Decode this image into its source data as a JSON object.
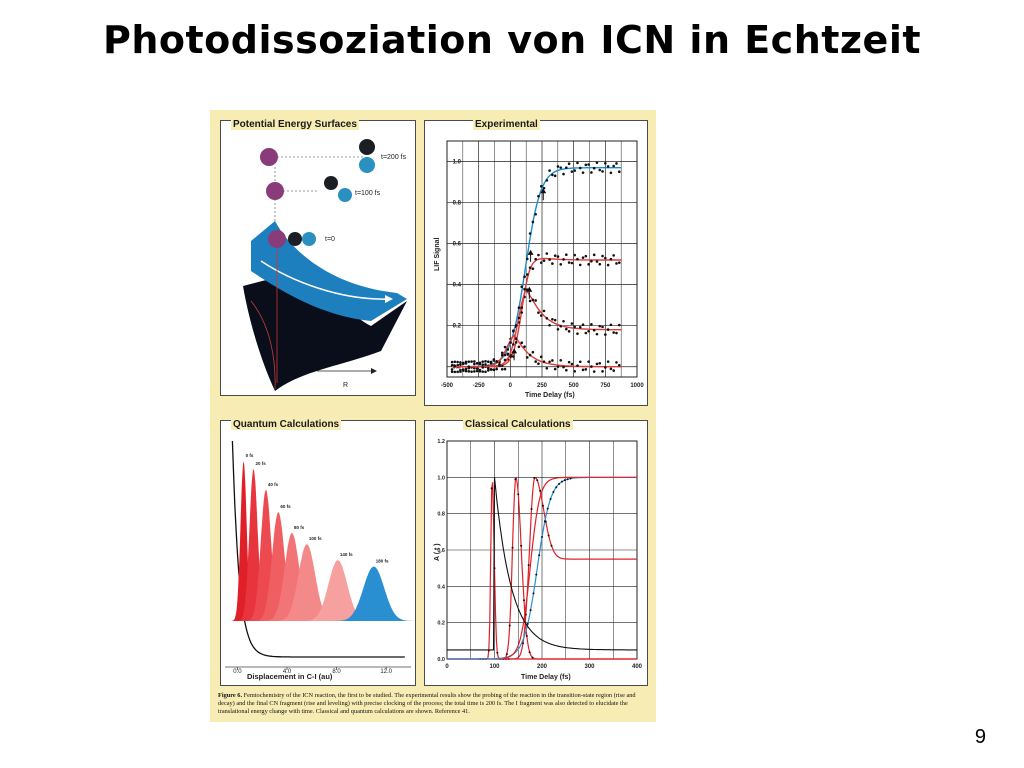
{
  "slide": {
    "title": "Photodissoziation von ICN in Echtzeit",
    "page_number": "9"
  },
  "panels": {
    "pes": {
      "title": "Potential Energy Surfaces",
      "labels": [
        "t=200 fs",
        "t=100 fs",
        "t=0",
        "R"
      ]
    },
    "experimental": {
      "title": "Experimental",
      "ylabel": "LIF Signal",
      "xlabel": "Time Delay (fs)"
    },
    "quantum": {
      "title": "Quantum Calculations",
      "xlabel": "Displacement in C-I (au)"
    },
    "classical": {
      "title": "Classical Calculations",
      "ylabel": "A ( t )",
      "xlabel": "Time Delay (fs)"
    }
  },
  "caption": {
    "label": "Figure 6.",
    "text": "Femtochemistry of the ICN reaction, the first to be studied. The experimental results show the probing of the reaction in the transition-state region (rise and decay) and the final CN fragment (rise and leveling) with precise clocking of the process; the total time is 200 fs. The I fragment was also detected to elucidate the translational energy change with time. Classical and quantum calculations are shown. Reference 41."
  },
  "chart_data": [
    {
      "type": "scatter",
      "title": "Experimental",
      "xlabel": "Time Delay (fs)",
      "ylabel": "LIF Signal",
      "xlim": [
        -500,
        1000
      ],
      "ylim": [
        -0.05,
        1.1
      ],
      "x_ticks": [
        "-500",
        "-250",
        "0",
        "250",
        "500",
        "750",
        "1000"
      ],
      "y_ticks": [
        "0.0",
        "0.2",
        "0.4",
        "0.6",
        "0.8",
        "1.0"
      ],
      "fit_colors": [
        "#1a8fd0",
        "#e23b3b"
      ],
      "series": [
        {
          "fit": "rise",
          "plateau": 0.97,
          "t0": 120,
          "width": 60
        },
        {
          "fit": "transient",
          "peak": 0.55,
          "t_peak": 150,
          "baseline": 0.52
        },
        {
          "fit": "transient",
          "peak": 0.44,
          "t_peak": 120,
          "baseline": 0.18
        },
        {
          "fit": "transient",
          "peak": 0.18,
          "t_peak": 30,
          "baseline": 0.0
        }
      ]
    },
    {
      "type": "area",
      "title": "Quantum Calculations",
      "xlabel": "Displacement in C-I (au)",
      "xlim": [
        -1,
        14
      ],
      "x_ticks": [
        "0.0",
        "4.0",
        "8.0",
        "12.0"
      ],
      "colors": [
        "#e02028",
        "#e8343c",
        "#ec4a50",
        "#ef5f62",
        "#f27476",
        "#f4898a",
        "#f6a0a0",
        "#2a8fd0"
      ],
      "series": [
        {
          "name": "0 fs",
          "center": 0.5,
          "height": 1.0
        },
        {
          "name": "20 fs",
          "center": 1.3,
          "height": 0.95
        },
        {
          "name": "40 fs",
          "center": 2.3,
          "height": 0.82
        },
        {
          "name": "60 fs",
          "center": 3.3,
          "height": 0.68
        },
        {
          "name": "80 fs",
          "center": 4.4,
          "height": 0.55
        },
        {
          "name": "100 fs",
          "center": 5.6,
          "height": 0.48
        },
        {
          "name": "140 fs",
          "center": 8.1,
          "height": 0.38
        },
        {
          "name": "180 fs",
          "center": 11.0,
          "height": 0.34
        }
      ]
    },
    {
      "type": "line",
      "title": "Classical Calculations",
      "xlabel": "Time Delay (fs)",
      "ylabel": "A ( t )",
      "xlim": [
        0,
        400
      ],
      "ylim": [
        0,
        1.2
      ],
      "x_ticks": [
        "0",
        "100",
        "200",
        "300",
        "400"
      ],
      "y_ticks": [
        "0.0",
        "0.2",
        "0.4",
        "0.6",
        "0.8",
        "1.0",
        "1.2"
      ],
      "colors": [
        "#e02028",
        "#2a8fd0"
      ],
      "series": [
        {
          "kind": "transient",
          "t_peak": 95,
          "peak": 1.0
        },
        {
          "kind": "transient",
          "t_peak": 145,
          "peak": 1.0
        },
        {
          "kind": "transient",
          "t_peak": 185,
          "peak": 1.0,
          "baseline": 0.55
        },
        {
          "kind": "rise",
          "t0": 190,
          "plateau": 1.0
        }
      ]
    }
  ]
}
